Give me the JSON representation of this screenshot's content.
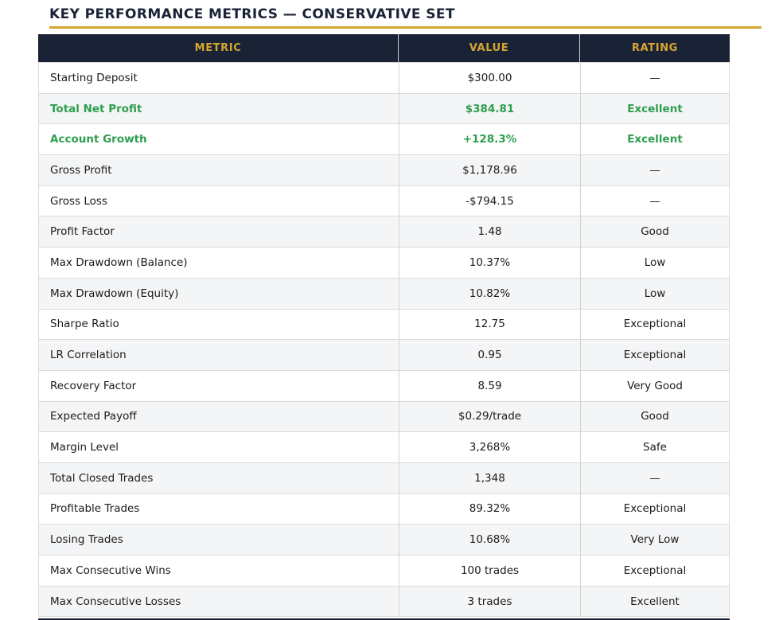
{
  "title": "KEY PERFORMANCE METRICS — CONSERVATIVE SET",
  "colors": {
    "header_bg": "#1a2335",
    "accent_gold": "#d6a62f",
    "highlight_green": "#2e9e4f",
    "row_alt_bg": "#f4f5f6",
    "text": "#1b1b1b"
  },
  "table": {
    "columns": [
      "METRIC",
      "VALUE",
      "RATING"
    ],
    "rows": [
      {
        "metric": "Starting Deposit",
        "value": "$300.00",
        "rating": "—",
        "highlight": false
      },
      {
        "metric": "Total Net Profit",
        "value": "$384.81",
        "rating": "Excellent",
        "highlight": true
      },
      {
        "metric": "Account Growth",
        "value": "+128.3%",
        "rating": "Excellent",
        "highlight": true
      },
      {
        "metric": "Gross Profit",
        "value": "$1,178.96",
        "rating": "—",
        "highlight": false
      },
      {
        "metric": "Gross Loss",
        "value": "-$794.15",
        "rating": "—",
        "highlight": false
      },
      {
        "metric": "Profit Factor",
        "value": "1.48",
        "rating": "Good",
        "highlight": false
      },
      {
        "metric": "Max Drawdown (Balance)",
        "value": "10.37%",
        "rating": "Low",
        "highlight": false
      },
      {
        "metric": "Max Drawdown (Equity)",
        "value": "10.82%",
        "rating": "Low",
        "highlight": false
      },
      {
        "metric": "Sharpe Ratio",
        "value": "12.75",
        "rating": "Exceptional",
        "highlight": false
      },
      {
        "metric": "LR Correlation",
        "value": "0.95",
        "rating": "Exceptional",
        "highlight": false
      },
      {
        "metric": "Recovery Factor",
        "value": "8.59",
        "rating": "Very Good",
        "highlight": false
      },
      {
        "metric": "Expected Payoff",
        "value": "$0.29/trade",
        "rating": "Good",
        "highlight": false
      },
      {
        "metric": "Margin Level",
        "value": "3,268%",
        "rating": "Safe",
        "highlight": false
      },
      {
        "metric": "Total Closed Trades",
        "value": "1,348",
        "rating": "—",
        "highlight": false
      },
      {
        "metric": "Profitable Trades",
        "value": "89.32%",
        "rating": "Exceptional",
        "highlight": false
      },
      {
        "metric": "Losing Trades",
        "value": "10.68%",
        "rating": "Very Low",
        "highlight": false
      },
      {
        "metric": "Max Consecutive Wins",
        "value": "100 trades",
        "rating": "Exceptional",
        "highlight": false
      },
      {
        "metric": "Max Consecutive Losses",
        "value": "3 trades",
        "rating": "Excellent",
        "highlight": false
      }
    ]
  }
}
